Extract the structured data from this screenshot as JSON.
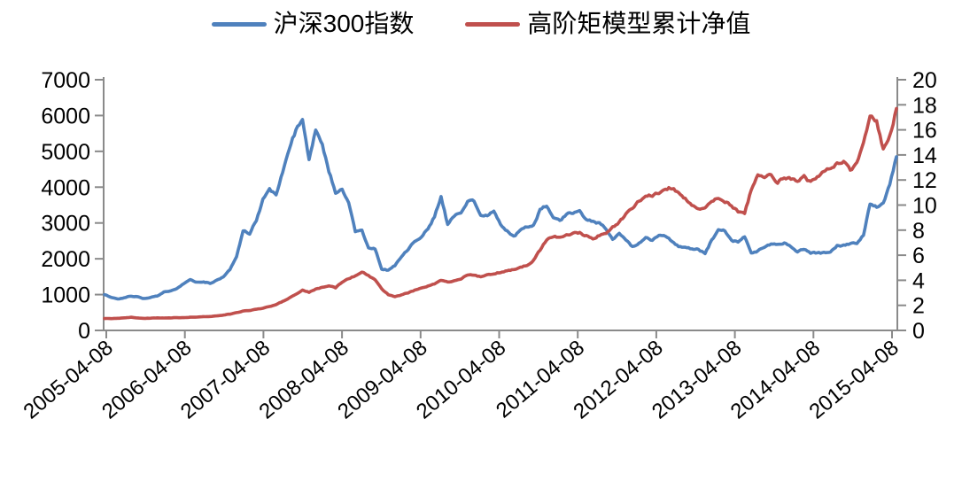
{
  "legend": [
    {
      "label": "沪深300指数",
      "color": "#4F81BD"
    },
    {
      "label": "高阶矩模型累计净值",
      "color": "#C0504D"
    }
  ],
  "colors": {
    "axis": "#8A8A8A",
    "tick_text": "#000000",
    "background": "#FFFFFF",
    "series_blue": "#4F81BD",
    "series_red": "#C0504D"
  },
  "chart_data": {
    "type": "line",
    "title": "",
    "xlabel": "",
    "ylabel_left": "",
    "ylabel_right": "",
    "grid": false,
    "legend_position": "top-center",
    "x_axis": {
      "tick_labels": [
        "2005-04-08",
        "2006-04-08",
        "2007-04-08",
        "2008-04-08",
        "2009-04-08",
        "2010-04-08",
        "2011-04-08",
        "2012-04-08",
        "2013-04-08",
        "2014-04-08",
        "2015-04-08"
      ],
      "label_rotation_deg": -40
    },
    "y_axis_left": {
      "min": 0,
      "max": 7000,
      "step": 1000,
      "ticks": [
        0,
        1000,
        2000,
        3000,
        4000,
        5000,
        6000,
        7000
      ]
    },
    "y_axis_right": {
      "min": 0,
      "max": 20,
      "step": 2,
      "ticks": [
        0,
        2,
        4,
        6,
        8,
        10,
        12,
        14,
        16,
        18,
        20
      ]
    },
    "sampling": "monthly values read from chart, 2005-04 through 2015-04 inclusive (121 points per series)",
    "series": [
      {
        "name": "沪深300指数",
        "axis": "left",
        "color": "#4F81BD",
        "monthly_values": [
          1000,
          930,
          880,
          910,
          960,
          940,
          890,
          920,
          960,
          1070,
          1090,
          1160,
          1310,
          1420,
          1340,
          1370,
          1310,
          1400,
          1500,
          1700,
          2060,
          2790,
          2680,
          3080,
          3650,
          3920,
          3810,
          4430,
          5100,
          5580,
          5800,
          4740,
          5600,
          5150,
          4450,
          3850,
          3950,
          3600,
          2780,
          2830,
          2290,
          2290,
          1720,
          1680,
          1820,
          2080,
          2250,
          2500,
          2610,
          2850,
          3170,
          3750,
          2950,
          3210,
          3280,
          3620,
          3580,
          3200,
          3230,
          3350,
          2950,
          2770,
          2610,
          2800,
          2880,
          2950,
          3380,
          3500,
          3150,
          3070,
          3250,
          3280,
          3310,
          3100,
          3040,
          2980,
          2830,
          2540,
          2700,
          2540,
          2350,
          2440,
          2620,
          2530,
          2630,
          2630,
          2500,
          2330,
          2290,
          2290,
          2250,
          2140,
          2520,
          2790,
          2770,
          2490,
          2470,
          2600,
          2170,
          2220,
          2340,
          2420,
          2380,
          2440,
          2330,
          2200,
          2260,
          2160,
          2170,
          2160,
          2200,
          2360,
          2390,
          2420,
          2430,
          2680,
          3530,
          3450,
          3540,
          4060,
          4850
        ]
      },
      {
        "name": "高阶矩模型累计净值",
        "axis": "right",
        "color": "#C0504D",
        "monthly_values": [
          0.95,
          0.95,
          0.97,
          1.0,
          1.05,
          1.0,
          0.96,
          0.98,
          1.0,
          1.0,
          1.0,
          1.02,
          1.02,
          1.06,
          1.06,
          1.1,
          1.1,
          1.15,
          1.22,
          1.3,
          1.42,
          1.55,
          1.6,
          1.68,
          1.78,
          1.92,
          2.05,
          2.3,
          2.6,
          2.9,
          3.2,
          3.05,
          3.3,
          3.45,
          3.55,
          3.4,
          3.85,
          4.15,
          4.35,
          4.65,
          4.4,
          4.0,
          3.3,
          2.85,
          2.7,
          2.85,
          3.0,
          3.2,
          3.4,
          3.55,
          3.7,
          4.0,
          3.85,
          4.0,
          4.1,
          4.4,
          4.4,
          4.3,
          4.4,
          4.55,
          4.65,
          4.75,
          4.9,
          5.05,
          5.2,
          5.6,
          6.4,
          7.2,
          7.55,
          7.45,
          7.6,
          7.7,
          7.8,
          7.55,
          7.35,
          7.6,
          7.75,
          8.2,
          8.6,
          9.2,
          9.8,
          10.3,
          10.7,
          10.8,
          11.0,
          11.3,
          11.4,
          11.0,
          10.5,
          10.0,
          9.7,
          9.9,
          10.3,
          10.5,
          10.3,
          10.0,
          9.5,
          9.4,
          11.2,
          12.3,
          12.2,
          12.4,
          11.9,
          12.2,
          12.1,
          12.0,
          12.3,
          11.8,
          12.3,
          12.6,
          13.0,
          13.3,
          13.6,
          12.9,
          13.3,
          15.2,
          17.2,
          16.8,
          14.4,
          15.6,
          17.7
        ]
      }
    ]
  }
}
